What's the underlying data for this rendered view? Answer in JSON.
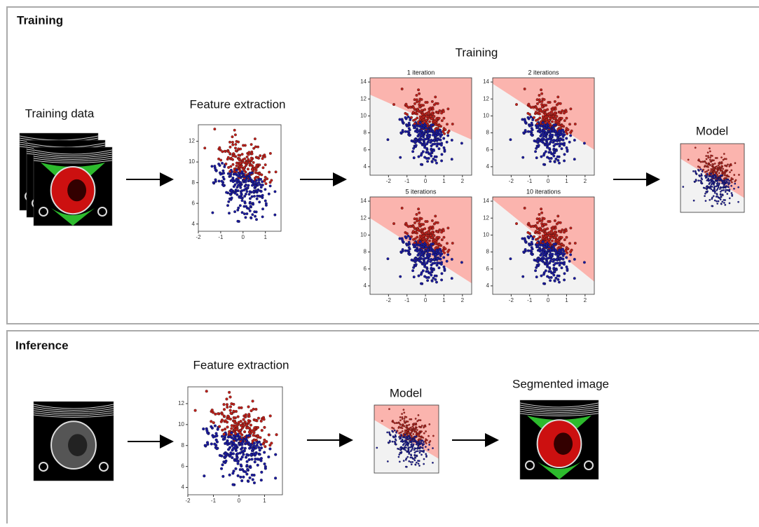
{
  "training": {
    "section_title": "Training",
    "data_label": "Training data",
    "feature_label": "Feature extraction",
    "training_label": "Training",
    "model_label": "Model",
    "feature_plot": {
      "xticks": [
        -2,
        -1,
        0,
        1
      ],
      "yticks": [
        4,
        6,
        8,
        10,
        12
      ]
    },
    "iteration_plots": [
      {
        "title": "1 iteration",
        "xticks": [
          -2,
          -1,
          0,
          1,
          2
        ],
        "yticks": [
          4,
          6,
          8,
          10,
          12,
          14
        ]
      },
      {
        "title": "2 iterations",
        "xticks": [
          -2,
          -1,
          0,
          1,
          2
        ],
        "yticks": [
          4,
          6,
          8,
          10,
          12,
          14
        ]
      },
      {
        "title": "5 iterations",
        "xticks": [
          -2,
          -1,
          0,
          1,
          2
        ],
        "yticks": [
          4,
          6,
          8,
          10,
          12,
          14
        ]
      },
      {
        "title": "10 iterations",
        "xticks": [
          -2,
          -1,
          0,
          1,
          2
        ],
        "yticks": [
          4,
          6,
          8,
          10,
          12,
          14
        ]
      }
    ]
  },
  "inference": {
    "section_title": "Inference",
    "feature_label": "Feature extraction",
    "model_label": "Model",
    "segmented_label": "Segmented image",
    "feature_plot": {
      "xticks": [
        -2,
        -1,
        0,
        1
      ],
      "yticks": [
        4,
        6,
        8,
        10,
        12
      ]
    }
  }
}
